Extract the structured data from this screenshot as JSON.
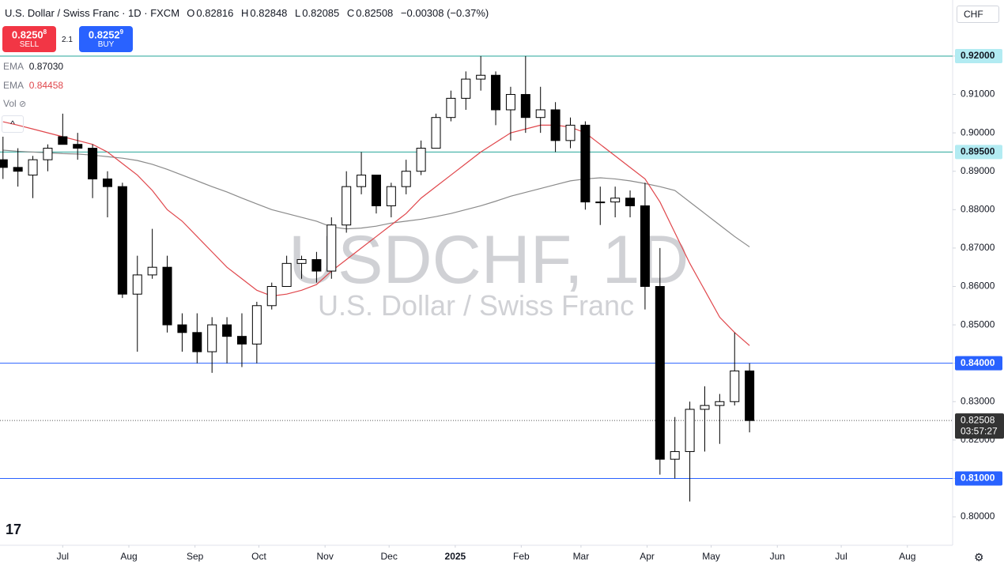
{
  "chart_data": {
    "type": "candlestick",
    "title": "U.S. Dollar / Swiss Franc · 1D · FXCM",
    "ohlc": {
      "open_label": "O",
      "open": 0.82816,
      "high_label": "H",
      "high": 0.82848,
      "low_label": "L",
      "low": 0.82085,
      "close_label": "C",
      "close": 0.82508,
      "change": "−0.00308 (−0.37%)"
    },
    "sell": {
      "price": "0.8250",
      "pip": "8",
      "label": "SELL"
    },
    "spread": "2.1",
    "buy": {
      "price": "0.8252",
      "pip": "9",
      "label": "BUY"
    },
    "volume_label": "Vol",
    "currency": "CHF",
    "watermark": "USDCHF, 1D",
    "watermark_subtitle": "U.S. Dollar / Swiss Franc",
    "up_color": "#ffffff",
    "down_color": "#000000",
    "open": [
      0.893,
      0.891,
      0.889,
      0.893,
      0.899,
      0.897,
      0.896,
      0.888,
      0.886,
      0.858,
      0.863,
      0.865,
      0.85,
      0.848,
      0.843,
      0.85,
      0.847,
      0.845,
      0.855,
      0.86,
      0.866,
      0.867,
      0.864,
      0.876,
      0.886,
      0.889,
      0.881,
      0.886,
      0.89,
      0.896,
      0.904,
      0.909,
      0.914,
      0.915,
      0.906,
      0.91,
      0.904,
      0.906,
      0.898,
      0.902,
      0.882,
      0.882,
      0.883,
      0.881,
      0.86,
      0.815,
      0.817,
      0.828,
      0.829,
      0.83,
      0.838
    ],
    "high": [
      0.899,
      0.896,
      0.894,
      0.897,
      0.905,
      0.9,
      0.897,
      0.89,
      0.887,
      0.868,
      0.875,
      0.868,
      0.853,
      0.853,
      0.852,
      0.852,
      0.853,
      0.856,
      0.861,
      0.868,
      0.868,
      0.869,
      0.878,
      0.89,
      0.895,
      0.889,
      0.887,
      0.893,
      0.898,
      0.905,
      0.911,
      0.916,
      0.92,
      0.916,
      0.912,
      0.92,
      0.912,
      0.908,
      0.904,
      0.903,
      0.886,
      0.886,
      0.885,
      0.887,
      0.87,
      0.826,
      0.83,
      0.834,
      0.832,
      0.848,
      0.84
    ],
    "low": [
      0.888,
      0.886,
      0.883,
      0.89,
      0.898,
      0.893,
      0.883,
      0.878,
      0.857,
      0.843,
      0.862,
      0.848,
      0.843,
      0.84,
      0.8375,
      0.84,
      0.839,
      0.84,
      0.854,
      0.86,
      0.862,
      0.861,
      0.862,
      0.874,
      0.884,
      0.879,
      0.878,
      0.884,
      0.889,
      0.896,
      0.903,
      0.906,
      0.911,
      0.902,
      0.898,
      0.9,
      0.9,
      0.895,
      0.896,
      0.88,
      0.876,
      0.878,
      0.878,
      0.854,
      0.811,
      0.81,
      0.804,
      0.817,
      0.819,
      0.829,
      0.822
    ],
    "close": [
      0.891,
      0.89,
      0.893,
      0.896,
      0.897,
      0.896,
      0.888,
      0.886,
      0.858,
      0.863,
      0.865,
      0.85,
      0.848,
      0.843,
      0.85,
      0.847,
      0.845,
      0.855,
      0.86,
      0.866,
      0.867,
      0.864,
      0.876,
      0.886,
      0.889,
      0.881,
      0.886,
      0.89,
      0.896,
      0.904,
      0.909,
      0.914,
      0.915,
      0.906,
      0.91,
      0.904,
      0.906,
      0.898,
      0.902,
      0.882,
      0.882,
      0.883,
      0.881,
      0.86,
      0.815,
      0.817,
      0.828,
      0.829,
      0.83,
      0.838,
      0.82508
    ],
    "series": [
      {
        "name": "EMA",
        "last_label": "0.87030",
        "color": "#8a8a8a",
        "values": [
          0.8955,
          0.8952,
          0.895,
          0.8948,
          0.8946,
          0.8945,
          0.8942,
          0.8938,
          0.8934,
          0.8928,
          0.8918,
          0.8905,
          0.889,
          0.8875,
          0.886,
          0.8846,
          0.883,
          0.8815,
          0.88,
          0.879,
          0.878,
          0.877,
          0.8755,
          0.875,
          0.8752,
          0.8757,
          0.8765,
          0.877,
          0.8775,
          0.8782,
          0.879,
          0.88,
          0.881,
          0.8822,
          0.8835,
          0.8845,
          0.8855,
          0.8865,
          0.8875,
          0.888,
          0.8883,
          0.888,
          0.8875,
          0.8868,
          0.886,
          0.885,
          0.882,
          0.879,
          0.876,
          0.873,
          0.8703
        ]
      },
      {
        "name": "EMA",
        "last_label": "0.84458",
        "color": "#e0474c",
        "values": [
          0.9029,
          0.902,
          0.901,
          0.9,
          0.899,
          0.898,
          0.897,
          0.895,
          0.892,
          0.889,
          0.885,
          0.88,
          0.877,
          0.873,
          0.869,
          0.865,
          0.862,
          0.859,
          0.8575,
          0.858,
          0.859,
          0.8605,
          0.864,
          0.867,
          0.87,
          0.873,
          0.876,
          0.879,
          0.883,
          0.886,
          0.889,
          0.892,
          0.895,
          0.8975,
          0.9,
          0.901,
          0.902,
          0.902,
          0.9015,
          0.9,
          0.897,
          0.894,
          0.891,
          0.888,
          0.882,
          0.874,
          0.866,
          0.859,
          0.852,
          0.848,
          0.8446
        ]
      }
    ],
    "levels": [
      {
        "value": 0.92,
        "label": "0.92000",
        "color": "#26a69a"
      },
      {
        "value": 0.895,
        "label": "0.89500",
        "color": "#26a69a"
      },
      {
        "value": 0.84,
        "label": "0.84000",
        "color": "#2962ff"
      },
      {
        "value": 0.81,
        "label": "0.81000",
        "color": "#2962ff"
      }
    ],
    "last_price": {
      "value": 0.82508,
      "label": "0.82508",
      "countdown": "03:57:27"
    },
    "xlim": [
      -0.2,
      63.6
    ],
    "xticks": [
      {
        "value": 4,
        "label": "Jul"
      },
      {
        "value": 8.43,
        "label": "Aug"
      },
      {
        "value": 12.86,
        "label": "Sep"
      },
      {
        "value": 17.14,
        "label": "Oct"
      },
      {
        "value": 21.57,
        "label": "Nov"
      },
      {
        "value": 25.86,
        "label": "Dec"
      },
      {
        "value": 30.29,
        "label": "2025"
      },
      {
        "value": 34.71,
        "label": "Feb"
      },
      {
        "value": 38.71,
        "label": "Mar"
      },
      {
        "value": 43.14,
        "label": "Apr"
      },
      {
        "value": 47.43,
        "label": "May"
      },
      {
        "value": 51.86,
        "label": "Jun"
      },
      {
        "value": 56.14,
        "label": "Jul"
      },
      {
        "value": 60.57,
        "label": "Aug"
      }
    ],
    "ylim": [
      0.7926,
      0.9346
    ],
    "yticks": [
      {
        "value": 0.8,
        "label": "0.80000"
      },
      {
        "value": 0.81,
        "label": "0.81000"
      },
      {
        "value": 0.82,
        "label": "0.82000"
      },
      {
        "value": 0.83,
        "label": "0.83000"
      },
      {
        "value": 0.84,
        "label": "0.84000"
      },
      {
        "value": 0.85,
        "label": "0.85000"
      },
      {
        "value": 0.86,
        "label": "0.86000"
      },
      {
        "value": 0.87,
        "label": "0.87000"
      },
      {
        "value": 0.88,
        "label": "0.88000"
      },
      {
        "value": 0.89,
        "label": "0.89000"
      },
      {
        "value": 0.9,
        "label": "0.90000"
      },
      {
        "value": 0.91,
        "label": "0.91000"
      },
      {
        "value": 0.92,
        "label": "0.92000"
      }
    ]
  }
}
